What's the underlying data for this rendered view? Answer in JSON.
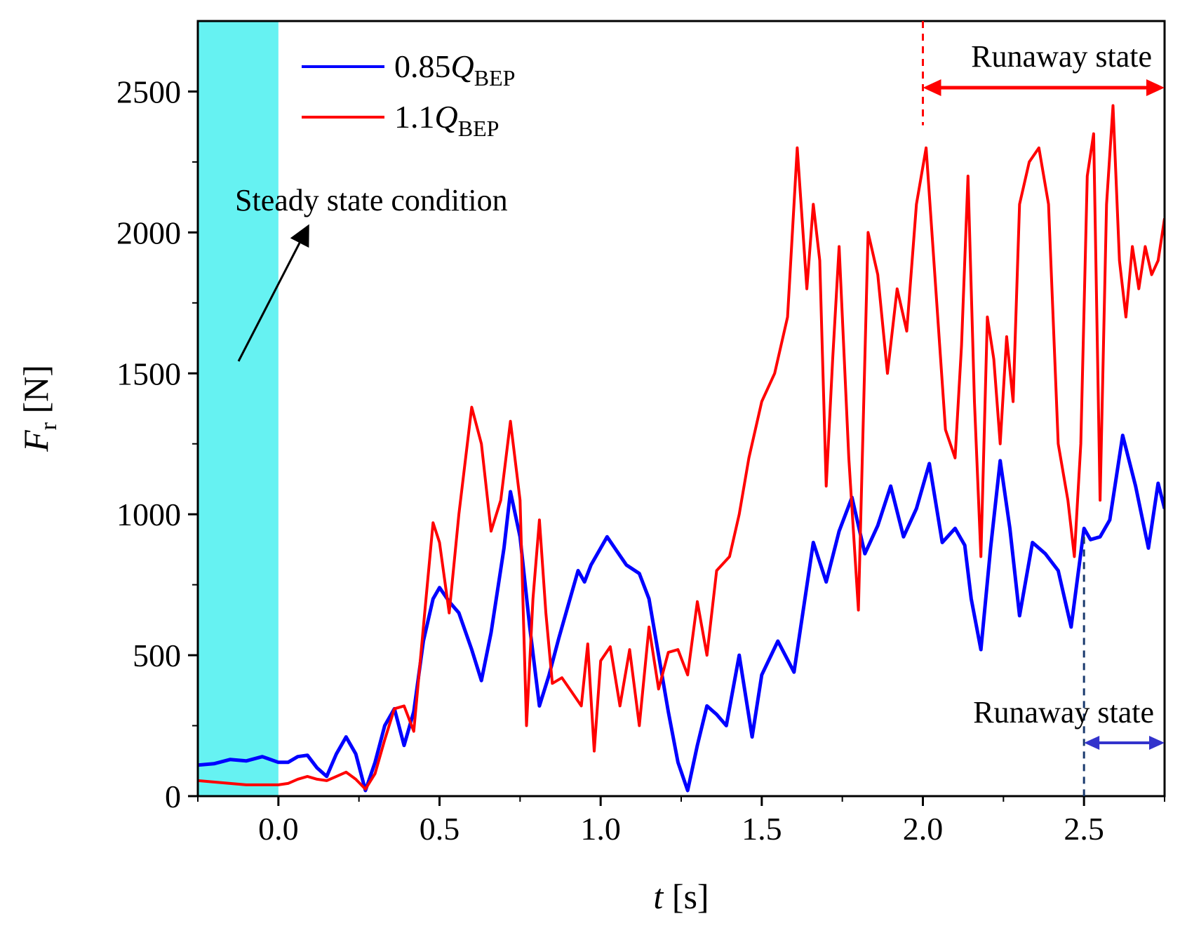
{
  "chart_data": {
    "type": "line",
    "xlabel": {
      "var": "t",
      "unit": "[s]"
    },
    "ylabel": {
      "var": "F",
      "sub": "r",
      "unit": "[N]"
    },
    "xlim": [
      -0.25,
      2.75
    ],
    "ylim": [
      0,
      2750
    ],
    "xticks": [
      0.0,
      0.5,
      1.0,
      1.5,
      2.0,
      2.5
    ],
    "xtick_labels": [
      "0.0",
      "0.5",
      "1.0",
      "1.5",
      "2.0",
      "2.5"
    ],
    "yticks": [
      0,
      500,
      1000,
      1500,
      2000,
      2500
    ],
    "ytick_labels": [
      "0",
      "500",
      "1000",
      "1500",
      "2000",
      "2500"
    ],
    "steady_region": {
      "x0": -0.25,
      "x1": 0.0,
      "color": "#66F2F2"
    },
    "series": [
      {
        "name": "0.85Q_BEP",
        "label_main": "0.85",
        "label_var": "Q",
        "label_sub": "BEP",
        "color": "#0000FF",
        "x": [
          -0.25,
          -0.2,
          -0.15,
          -0.1,
          -0.05,
          0.0,
          0.03,
          0.06,
          0.09,
          0.12,
          0.15,
          0.18,
          0.21,
          0.24,
          0.27,
          0.3,
          0.33,
          0.36,
          0.39,
          0.42,
          0.45,
          0.48,
          0.5,
          0.53,
          0.56,
          0.6,
          0.63,
          0.66,
          0.7,
          0.72,
          0.75,
          0.78,
          0.81,
          0.84,
          0.87,
          0.9,
          0.93,
          0.95,
          0.97,
          1.0,
          1.02,
          1.05,
          1.08,
          1.12,
          1.15,
          1.18,
          1.21,
          1.24,
          1.27,
          1.3,
          1.33,
          1.36,
          1.39,
          1.43,
          1.47,
          1.5,
          1.55,
          1.6,
          1.66,
          1.7,
          1.74,
          1.78,
          1.82,
          1.86,
          1.9,
          1.94,
          1.98,
          2.02,
          2.06,
          2.1,
          2.13,
          2.15,
          2.18,
          2.21,
          2.24,
          2.27,
          2.3,
          2.34,
          2.38,
          2.42,
          2.46,
          2.5,
          2.52,
          2.55,
          2.58,
          2.62,
          2.66,
          2.7,
          2.73,
          2.75
        ],
        "y": [
          110,
          115,
          130,
          125,
          140,
          120,
          120,
          140,
          145,
          100,
          70,
          150,
          210,
          150,
          20,
          120,
          250,
          310,
          180,
          300,
          550,
          700,
          740,
          690,
          650,
          520,
          410,
          580,
          880,
          1080,
          920,
          600,
          320,
          430,
          560,
          680,
          800,
          760,
          820,
          880,
          920,
          870,
          820,
          790,
          700,
          500,
          300,
          120,
          20,
          180,
          320,
          290,
          250,
          500,
          210,
          430,
          550,
          440,
          900,
          760,
          940,
          1060,
          860,
          960,
          1100,
          920,
          1020,
          1180,
          900,
          950,
          890,
          700,
          520,
          880,
          1190,
          950,
          640,
          900,
          860,
          800,
          600,
          950,
          910,
          920,
          980,
          1280,
          1100,
          880,
          1110,
          1020
        ]
      },
      {
        "name": "1.1Q_BEP",
        "label_main": "1.1",
        "label_var": "Q",
        "label_sub": "BEP",
        "color": "#FF0000",
        "x": [
          -0.25,
          -0.2,
          -0.15,
          -0.1,
          -0.05,
          0.0,
          0.03,
          0.06,
          0.09,
          0.12,
          0.15,
          0.18,
          0.21,
          0.24,
          0.27,
          0.3,
          0.33,
          0.36,
          0.39,
          0.42,
          0.45,
          0.48,
          0.5,
          0.53,
          0.56,
          0.6,
          0.63,
          0.66,
          0.69,
          0.72,
          0.75,
          0.77,
          0.79,
          0.81,
          0.83,
          0.85,
          0.88,
          0.91,
          0.94,
          0.96,
          0.98,
          1.0,
          1.03,
          1.06,
          1.09,
          1.12,
          1.15,
          1.18,
          1.21,
          1.24,
          1.27,
          1.3,
          1.33,
          1.36,
          1.4,
          1.43,
          1.46,
          1.5,
          1.54,
          1.58,
          1.61,
          1.64,
          1.66,
          1.68,
          1.7,
          1.72,
          1.74,
          1.77,
          1.8,
          1.83,
          1.86,
          1.89,
          1.92,
          1.95,
          1.98,
          2.01,
          2.04,
          2.07,
          2.1,
          2.12,
          2.14,
          2.16,
          2.18,
          2.2,
          2.22,
          2.24,
          2.26,
          2.28,
          2.3,
          2.33,
          2.36,
          2.39,
          2.42,
          2.45,
          2.47,
          2.49,
          2.51,
          2.53,
          2.55,
          2.57,
          2.59,
          2.61,
          2.63,
          2.65,
          2.67,
          2.69,
          2.71,
          2.73,
          2.75
        ],
        "y": [
          55,
          50,
          45,
          40,
          40,
          40,
          45,
          60,
          70,
          60,
          55,
          70,
          85,
          60,
          25,
          80,
          200,
          310,
          320,
          230,
          600,
          970,
          900,
          650,
          1000,
          1380,
          1250,
          940,
          1050,
          1330,
          1050,
          250,
          700,
          980,
          650,
          400,
          420,
          370,
          320,
          540,
          160,
          480,
          530,
          320,
          520,
          250,
          600,
          380,
          510,
          520,
          430,
          690,
          500,
          800,
          850,
          1000,
          1200,
          1400,
          1500,
          1700,
          2300,
          1800,
          2100,
          1900,
          1100,
          1550,
          1950,
          1200,
          660,
          2000,
          1850,
          1500,
          1800,
          1650,
          2100,
          2300,
          1800,
          1300,
          1200,
          1600,
          2200,
          1400,
          850,
          1700,
          1550,
          1250,
          1630,
          1400,
          2100,
          2250,
          2300,
          2100,
          1250,
          1050,
          850,
          1250,
          2200,
          2350,
          1050,
          2100,
          2450,
          1900,
          1700,
          1950,
          1800,
          1950,
          1850,
          1900,
          2050
        ]
      }
    ],
    "annotations": {
      "steady_label": "Steady state condition",
      "runaway_red_label": "Runaway state",
      "runaway_blue_label": "Runaway state",
      "runaway_red_start": 2.0,
      "runaway_blue_start": 2.5,
      "runaway_red_color": "#FF0000",
      "runaway_blue_color": "#3333CC"
    }
  }
}
